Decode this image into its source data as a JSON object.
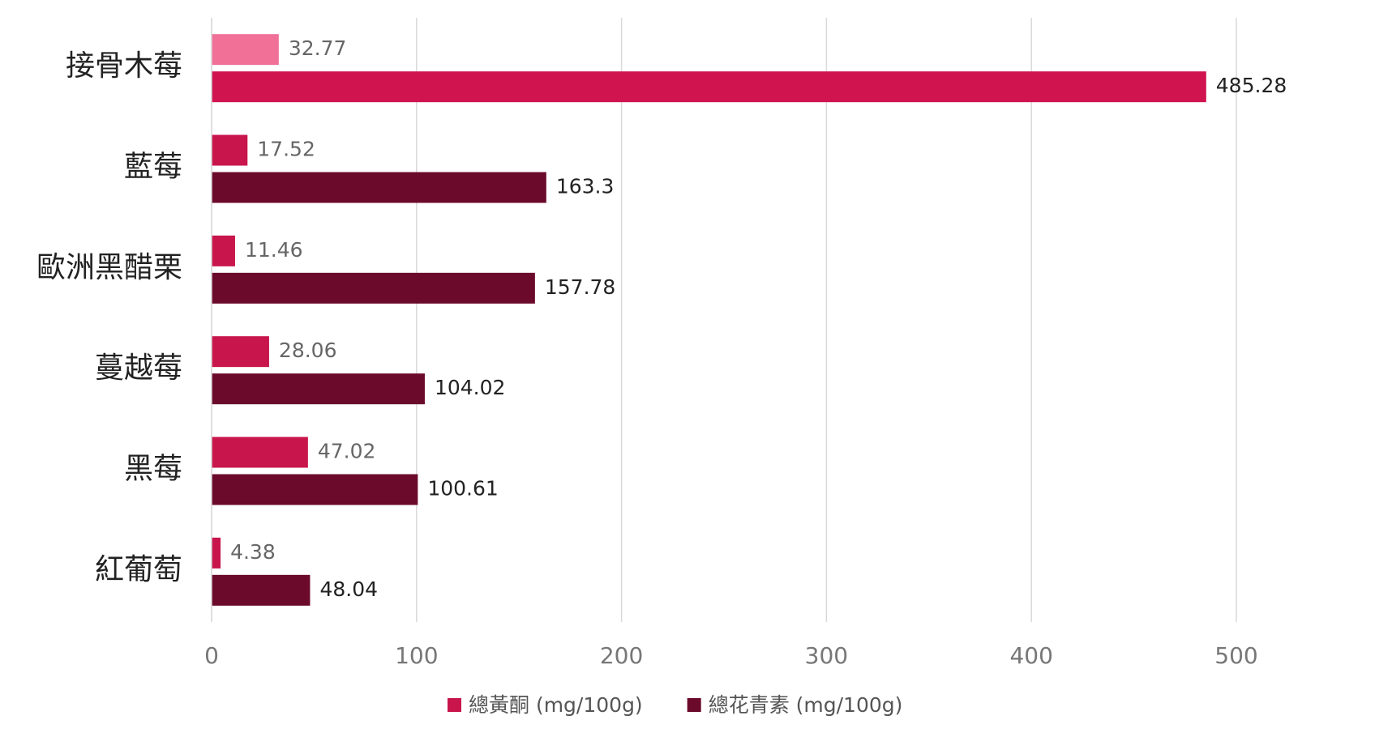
{
  "chart_data": {
    "type": "bar",
    "orientation": "horizontal",
    "categories": [
      "接骨木莓",
      "藍莓",
      "歐洲黑醋栗",
      "蔓越莓",
      "黑莓",
      "紅葡萄"
    ],
    "series": [
      {
        "name": "總黃酮 (mg/100g)",
        "color": "#c8154c",
        "point_colors": [
          "#f07098",
          "#c8154c",
          "#c8154c",
          "#c8154c",
          "#c8154c",
          "#c8154c"
        ],
        "values": [
          32.77,
          17.52,
          11.46,
          28.06,
          47.02,
          4.38
        ]
      },
      {
        "name": "總花青素 (mg/100g)",
        "color": "#6b0a2a",
        "point_colors": [
          "#d01450",
          "#6b0a2a",
          "#6b0a2a",
          "#6b0a2a",
          "#6b0a2a",
          "#6b0a2a"
        ],
        "values": [
          485.28,
          163.3,
          157.78,
          104.02,
          100.61,
          48.04
        ]
      }
    ],
    "xlim": [
      0,
      540
    ],
    "xticks": [
      0,
      100,
      200,
      300,
      400,
      500
    ],
    "grid": true,
    "legend": "bottom"
  }
}
